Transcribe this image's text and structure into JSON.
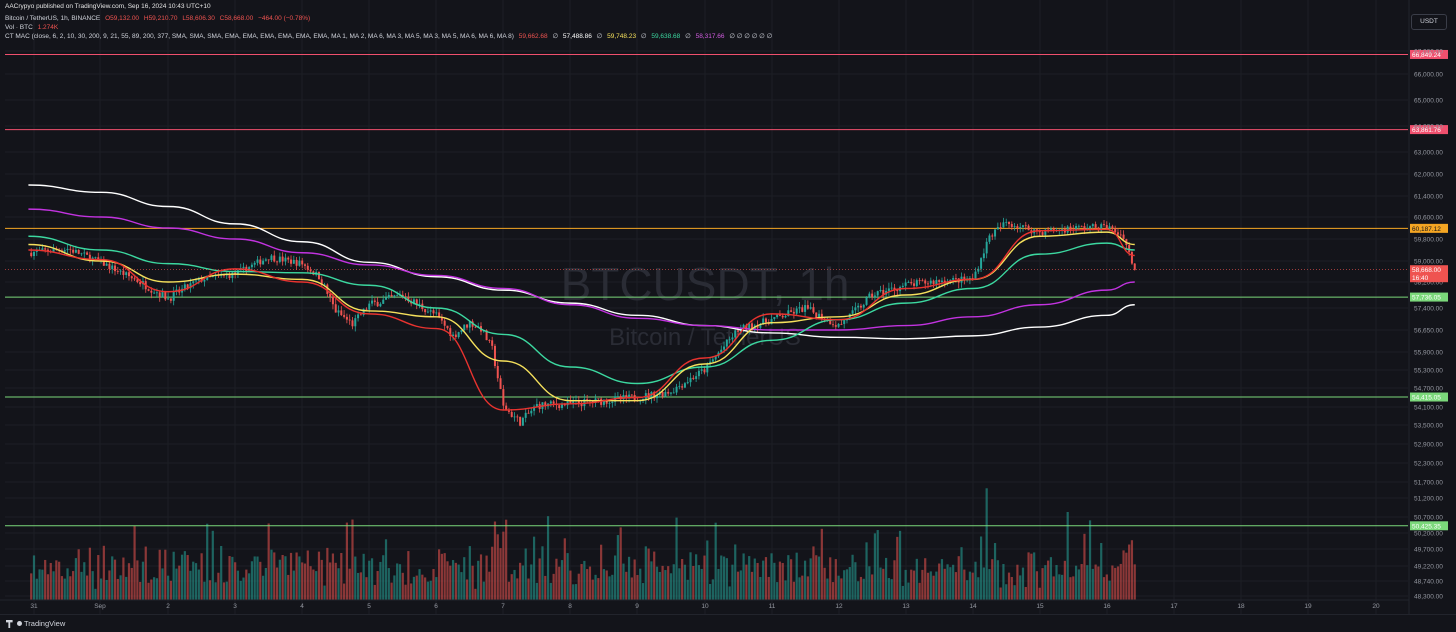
{
  "publish_line": "AACrypyo published on TradingView.com, Sep 16, 2024 10:43 UTC+10",
  "symbol_line": {
    "name": "Bitcoin / TetherUS, 1h, BINANCE",
    "open": "O59,132.00",
    "high": "H59,210.70",
    "low": "L58,606.30",
    "close": "C58,668.00",
    "change": "−464.00 (−0.78%)"
  },
  "volume_line": {
    "name": "Vol · BTC",
    "value": "1.274K"
  },
  "indicator_line": {
    "name": "CT MAC (close, 6, 2, 10, 30, 200, 9, 21, 55, 89, 200, 377, SMA, SMA, SMA, EMA, EMA, EMA, EMA, EMA, EMA, MA 1, MA 2, MA 6, MA 3, MA 5, MA 3, MA 5, MA 6, MA 6, MA 8)",
    "v1": "59,662.68",
    "v2": "57,488.86",
    "v3": "59,748.23",
    "v4": "59,638.68",
    "v5": "58,317.66",
    "tail": "∅ ∅ ∅ ∅ ∅ ∅"
  },
  "currency_button": "USDT",
  "watermark": {
    "symbol": "BTCUSDT, 1h",
    "name": "Bitcoin / TetherUS"
  },
  "footer": {
    "brand": "TradingView"
  },
  "colors": {
    "background": "#13141a",
    "up": "#26a69a",
    "down": "#ef5350",
    "ma_red": "#e8332f",
    "ma_yellow": "#f5e05c",
    "ma_green": "#3cd8a0",
    "ma_magenta": "#c233e0",
    "ma_white": "#ffffff",
    "level_red": "#f0506e",
    "level_orange": "#f5a623",
    "level_green": "#7bd87b"
  },
  "chart_data": {
    "type": "candlestick",
    "interval": "1h",
    "price_axis_labels": [
      "67,000.00",
      "66,000.00",
      "65,000.00",
      "64,000.00",
      "63,000.00",
      "62,000.00",
      "61,400.00",
      "60,600.00",
      "59,800.00",
      "59,000.00",
      "58,200.00",
      "57,400.00",
      "56,650.00",
      "55,900.00",
      "55,300.00",
      "54,700.00",
      "54,100.00",
      "53,500.00",
      "52,900.00",
      "52,300.00",
      "51,700.00",
      "51,200.00",
      "50,700.00",
      "50,200.00",
      "49,700.00",
      "49,220.00",
      "48,740.00",
      "48,300.00"
    ],
    "time_axis_labels": [
      "31",
      "Sep",
      "2",
      "3",
      "4",
      "5",
      "6",
      "7",
      "8",
      "9",
      "10",
      "11",
      "12",
      "13",
      "14",
      "15",
      "16",
      "17",
      "18",
      "19",
      "20"
    ],
    "horizontal_levels": [
      {
        "label": "66,849.24",
        "color": "level_red"
      },
      {
        "label": "63,861.76",
        "color": "level_red"
      },
      {
        "label": "60,187.12",
        "color": "level_orange"
      },
      {
        "label": "57,736.05",
        "color": "level_green"
      },
      {
        "label": "54,415.05",
        "color": "level_green"
      },
      {
        "label": "50,425.35",
        "color": "level_green"
      }
    ],
    "last_price": {
      "value": "58,668.00",
      "countdown": "16:40"
    },
    "price_path": [
      [
        "Aug 30 22:00",
        59300
      ],
      [
        "Aug 31 12:00",
        59450
      ],
      [
        "Sep 1 00:00",
        58950
      ],
      [
        "Sep 1 12:00",
        58300
      ],
      [
        "Sep 2 00:00",
        57700
      ],
      [
        "Sep 2 12:00",
        58300
      ],
      [
        "Sep 3 00:00",
        58500
      ],
      [
        "Sep 3 12:00",
        59150
      ],
      [
        "Sep 4 00:00",
        58900
      ],
      [
        "Sep 4 06:00",
        58400
      ],
      [
        "Sep 4 12:00",
        57300
      ],
      [
        "Sep 4 18:00",
        56850
      ],
      [
        "Sep 5 00:00",
        57500
      ],
      [
        "Sep 5 12:00",
        57800
      ],
      [
        "Sep 6 00:00",
        57150
      ],
      [
        "Sep 6 06:00",
        56450
      ],
      [
        "Sep 6 12:00",
        56900
      ],
      [
        "Sep 6 16:00",
        56700
      ],
      [
        "Sep 6 20:00",
        56000
      ],
      [
        "Sep 7 00:00",
        54100
      ],
      [
        "Sep 7 06:00",
        53600
      ],
      [
        "Sep 7 12:00",
        54150
      ],
      [
        "Sep 8 00:00",
        54200
      ],
      [
        "Sep 8 12:00",
        54300
      ],
      [
        "Sep 9 00:00",
        54400
      ],
      [
        "Sep 9 12:00",
        54600
      ],
      [
        "Sep 10 00:00",
        55300
      ],
      [
        "Sep 10 12:00",
        56650
      ],
      [
        "Sep 11 00:00",
        57000
      ],
      [
        "Sep 11 12:00",
        57400
      ],
      [
        "Sep 12 00:00",
        56800
      ],
      [
        "Sep 12 12:00",
        57800
      ],
      [
        "Sep 13 00:00",
        58100
      ],
      [
        "Sep 13 12:00",
        58250
      ],
      [
        "Sep 14 00:00",
        58300
      ],
      [
        "Sep 14 06:00",
        59900
      ],
      [
        "Sep 14 12:00",
        60400
      ],
      [
        "Sep 15 00:00",
        60050
      ],
      [
        "Sep 15 12:00",
        60200
      ],
      [
        "Sep 16 00:00",
        60250
      ],
      [
        "Sep 16 06:00",
        59900
      ],
      [
        "Sep 16 10:00",
        58668
      ]
    ],
    "moving_averages": [
      {
        "color": "ma_white",
        "points": [
          [
            "Aug 30 22:00",
            61700
          ],
          [
            "Sep 1 00:00",
            61500
          ],
          [
            "Sep 2 00:00",
            61000
          ],
          [
            "Sep 3 00:00",
            60350
          ],
          [
            "Sep 4 00:00",
            59700
          ],
          [
            "Sep 5 00:00",
            58950
          ],
          [
            "Sep 6 00:00",
            58400
          ],
          [
            "Sep 7 00:00",
            57950
          ],
          [
            "Sep 8 00:00",
            57550
          ],
          [
            "Sep 9 00:00",
            57150
          ],
          [
            "Sep 10 00:00",
            56800
          ],
          [
            "Sep 11 00:00",
            56550
          ],
          [
            "Sep 12 00:00",
            56400
          ],
          [
            "Sep 13 00:00",
            56350
          ],
          [
            "Sep 14 00:00",
            56450
          ],
          [
            "Sep 15 00:00",
            56750
          ],
          [
            "Sep 16 00:00",
            57150
          ],
          [
            "Sep 16 10:00",
            57500
          ]
        ]
      },
      {
        "color": "ma_magenta",
        "points": [
          [
            "Aug 30 22:00",
            60900
          ],
          [
            "Sep 1 00:00",
            60600
          ],
          [
            "Sep 2 00:00",
            60200
          ],
          [
            "Sep 3 00:00",
            59800
          ],
          [
            "Sep 4 00:00",
            59300
          ],
          [
            "Sep 5 00:00",
            58850
          ],
          [
            "Sep 6 00:00",
            58450
          ],
          [
            "Sep 7 00:00",
            58000
          ],
          [
            "Sep 8 00:00",
            57500
          ],
          [
            "Sep 9 00:00",
            57050
          ],
          [
            "Sep 10 00:00",
            56800
          ],
          [
            "Sep 11 00:00",
            56650
          ],
          [
            "Sep 12 00:00",
            56650
          ],
          [
            "Sep 13 00:00",
            56800
          ],
          [
            "Sep 14 00:00",
            57100
          ],
          [
            "Sep 15 00:00",
            57500
          ],
          [
            "Sep 16 00:00",
            57950
          ],
          [
            "Sep 16 10:00",
            58200
          ]
        ]
      },
      {
        "color": "ma_green",
        "points": [
          [
            "Aug 30 22:00",
            59900
          ],
          [
            "Sep 1 00:00",
            59400
          ],
          [
            "Sep 2 00:00",
            58900
          ],
          [
            "Sep 3 00:00",
            58600
          ],
          [
            "Sep 4 00:00",
            58550
          ],
          [
            "Sep 5 00:00",
            58100
          ],
          [
            "Sep 6 00:00",
            57400
          ],
          [
            "Sep 7 00:00",
            56500
          ],
          [
            "Sep 8 00:00",
            55400
          ],
          [
            "Sep 9 00:00",
            54850
          ],
          [
            "Sep 10 00:00",
            55400
          ],
          [
            "Sep 11 00:00",
            56300
          ],
          [
            "Sep 12 00:00",
            57000
          ],
          [
            "Sep 13 00:00",
            57550
          ],
          [
            "Sep 14 00:00",
            58000
          ],
          [
            "Sep 15 00:00",
            59250
          ],
          [
            "Sep 16 00:00",
            59650
          ],
          [
            "Sep 16 10:00",
            59400
          ]
        ]
      },
      {
        "color": "ma_yellow",
        "points": [
          [
            "Aug 30 22:00",
            59600
          ],
          [
            "Sep 1 00:00",
            59000
          ],
          [
            "Sep 2 00:00",
            58200
          ],
          [
            "Sep 3 00:00",
            58500
          ],
          [
            "Sep 4 00:00",
            58300
          ],
          [
            "Sep 5 00:00",
            57300
          ],
          [
            "Sep 6 00:00",
            57100
          ],
          [
            "Sep 7 00:00",
            55600
          ],
          [
            "Sep 8 00:00",
            54300
          ],
          [
            "Sep 9 00:00",
            54300
          ],
          [
            "Sep 10 00:00",
            55500
          ],
          [
            "Sep 11 00:00",
            56900
          ],
          [
            "Sep 12 00:00",
            57100
          ],
          [
            "Sep 13 00:00",
            57800
          ],
          [
            "Sep 14 00:00",
            58300
          ],
          [
            "Sep 15 00:00",
            59900
          ],
          [
            "Sep 16 00:00",
            60050
          ],
          [
            "Sep 16 10:00",
            59600
          ]
        ]
      },
      {
        "color": "ma_red",
        "points": [
          [
            "Aug 30 22:00",
            59400
          ],
          [
            "Sep 1 00:00",
            59050
          ],
          [
            "Sep 2 00:00",
            57900
          ],
          [
            "Sep 3 00:00",
            58700
          ],
          [
            "Sep 4 00:00",
            58200
          ],
          [
            "Sep 5 00:00",
            57200
          ],
          [
            "Sep 6 00:00",
            56700
          ],
          [
            "Sep 7 00:00",
            54000
          ],
          [
            "Sep 8 00:00",
            54200
          ],
          [
            "Sep 9 00:00",
            54400
          ],
          [
            "Sep 10 00:00",
            55700
          ],
          [
            "Sep 11 00:00",
            57200
          ],
          [
            "Sep 12 00:00",
            57000
          ],
          [
            "Sep 13 00:00",
            58000
          ],
          [
            "Sep 14 00:00",
            58300
          ],
          [
            "Sep 15 00:00",
            60100
          ],
          [
            "Sep 16 00:00",
            60150
          ],
          [
            "Sep 16 10:00",
            59200
          ]
        ]
      }
    ]
  }
}
